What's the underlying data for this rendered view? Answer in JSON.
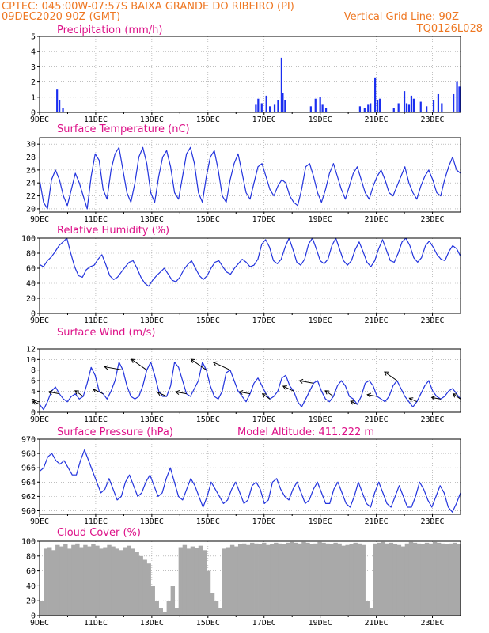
{
  "header": {
    "left_line1": "CPTEC:   045:00W-07:57S  BAIXA GRANDE DO RIBEIRO (PI)",
    "left_line2": "09DEC2020 90Z (GMT)",
    "right_line1": "Vertical Grid Line: 90Z",
    "right_line2": "TQ0126L028",
    "model_altitude": "Model Altitude: 411.222  m"
  },
  "colors": {
    "header": "#ee7722",
    "panel_title": "#dd1188",
    "line": "#2233dd",
    "bar": "#1a2ef0",
    "cloud": "#a9a9a9",
    "arrow": "#000000"
  },
  "x_axis": {
    "labels": [
      "9DEC",
      "11DEC",
      "13DEC",
      "15DEC",
      "17DEC",
      "19DEC",
      "21DEC",
      "23DEC"
    ],
    "start": "2020-12-09",
    "end": "2020-12-24",
    "vertical_grid_hour": "90Z"
  },
  "chart_data": [
    {
      "type": "bar",
      "title": "Precipitation (mm/h)",
      "ylim": [
        0,
        5
      ],
      "yticks": [
        0,
        1,
        2,
        3,
        4,
        5
      ],
      "series": [
        {
          "events": [
            {
              "x": "2020-12-09T15",
              "y": 1.5
            },
            {
              "x": "2020-12-09T17",
              "y": 0.8
            },
            {
              "x": "2020-12-09T20",
              "y": 0.3
            },
            {
              "x": "2020-12-16T17",
              "y": 0.5
            },
            {
              "x": "2020-12-16T19",
              "y": 0.9
            },
            {
              "x": "2020-12-16T22",
              "y": 0.6
            },
            {
              "x": "2020-12-17T02",
              "y": 1.1
            },
            {
              "x": "2020-12-17T05",
              "y": 0.4
            },
            {
              "x": "2020-12-17T09",
              "y": 0.5
            },
            {
              "x": "2020-12-17T12",
              "y": 0.8
            },
            {
              "x": "2020-12-17T15",
              "y": 3.6
            },
            {
              "x": "2020-12-17T16",
              "y": 1.3
            },
            {
              "x": "2020-12-17T18",
              "y": 0.8
            },
            {
              "x": "2020-12-18T16",
              "y": 0.4
            },
            {
              "x": "2020-12-18T20",
              "y": 0.9
            },
            {
              "x": "2020-12-19T00",
              "y": 1.0
            },
            {
              "x": "2020-12-19T02",
              "y": 0.5
            },
            {
              "x": "2020-12-19T05",
              "y": 0.3
            },
            {
              "x": "2020-12-20T10",
              "y": 0.4
            },
            {
              "x": "2020-12-20T14",
              "y": 0.3
            },
            {
              "x": "2020-12-20T17",
              "y": 0.5
            },
            {
              "x": "2020-12-20T19",
              "y": 0.6
            },
            {
              "x": "2020-12-20T23",
              "y": 2.3
            },
            {
              "x": "2020-12-21T01",
              "y": 0.8
            },
            {
              "x": "2020-12-21T03",
              "y": 0.9
            },
            {
              "x": "2020-12-21T15",
              "y": 0.3
            },
            {
              "x": "2020-12-21T19",
              "y": 0.6
            },
            {
              "x": "2020-12-22T00",
              "y": 1.4
            },
            {
              "x": "2020-12-22T02",
              "y": 0.6
            },
            {
              "x": "2020-12-22T04",
              "y": 0.5
            },
            {
              "x": "2020-12-22T06",
              "y": 1.1
            },
            {
              "x": "2020-12-22T08",
              "y": 0.9
            },
            {
              "x": "2020-12-22T14",
              "y": 0.7
            },
            {
              "x": "2020-12-22T19",
              "y": 0.4
            },
            {
              "x": "2020-12-23T01",
              "y": 0.8
            },
            {
              "x": "2020-12-23T05",
              "y": 1.2
            },
            {
              "x": "2020-12-23T08",
              "y": 0.6
            },
            {
              "x": "2020-12-23T18",
              "y": 1.2
            },
            {
              "x": "2020-12-23T21",
              "y": 2.0
            },
            {
              "x": "2020-12-23T23",
              "y": 1.7
            }
          ]
        }
      ]
    },
    {
      "type": "line",
      "title": "Surface Temperature (nC)",
      "ylim": [
        19.5,
        31
      ],
      "yticks": [
        20,
        22,
        24,
        26,
        28,
        30
      ],
      "series": [
        {
          "values": [
            24.5,
            21,
            20,
            24.5,
            26,
            24.5,
            22,
            20.5,
            23,
            25.5,
            24,
            22,
            20,
            25,
            28.5,
            27.5,
            23,
            21.5,
            26,
            28.5,
            29.5,
            26,
            22.5,
            21,
            24,
            28,
            29.5,
            27,
            22.5,
            21,
            25,
            28,
            29,
            26.5,
            22.5,
            21.5,
            25,
            28.5,
            29.5,
            27,
            22.5,
            21,
            25,
            28,
            29,
            26,
            22,
            21,
            24.5,
            27,
            28.5,
            25.5,
            22.5,
            21.5,
            24,
            26.5,
            27,
            25,
            23,
            22,
            23.5,
            24.5,
            24,
            22,
            21,
            20.5,
            23,
            26.5,
            27,
            25,
            22.5,
            21,
            23,
            25.5,
            27,
            25,
            23,
            21.5,
            23.5,
            25.5,
            26.5,
            24.5,
            22.5,
            21.5,
            23.5,
            25,
            26,
            24.5,
            22.5,
            22,
            23.5,
            25,
            26.5,
            24,
            22.5,
            21.5,
            23.5,
            25,
            26,
            24.5,
            22.5,
            22,
            24.5,
            26.5,
            28,
            26,
            25.5
          ]
        }
      ]
    },
    {
      "type": "line",
      "title": "Relative Humidity (%)",
      "ylim": [
        0,
        100
      ],
      "yticks": [
        0,
        20,
        40,
        60,
        80,
        100
      ],
      "series": [
        {
          "values": [
            65,
            62,
            70,
            75,
            82,
            90,
            95,
            100,
            80,
            62,
            50,
            48,
            58,
            62,
            64,
            72,
            78,
            65,
            50,
            45,
            48,
            55,
            62,
            68,
            70,
            60,
            48,
            40,
            36,
            44,
            50,
            55,
            60,
            52,
            44,
            42,
            48,
            58,
            65,
            70,
            60,
            50,
            45,
            50,
            60,
            68,
            70,
            62,
            55,
            52,
            60,
            66,
            72,
            68,
            62,
            64,
            72,
            92,
            98,
            88,
            70,
            66,
            72,
            88,
            100,
            85,
            68,
            64,
            72,
            92,
            100,
            86,
            70,
            66,
            72,
            90,
            100,
            85,
            70,
            64,
            70,
            85,
            95,
            82,
            68,
            62,
            70,
            86,
            98,
            84,
            70,
            68,
            80,
            95,
            100,
            90,
            74,
            68,
            74,
            90,
            96,
            88,
            78,
            72,
            70,
            82,
            90,
            86,
            76
          ]
        }
      ]
    },
    {
      "type": "line",
      "title": "Surface Wind (m/s)",
      "ylim": [
        0,
        12
      ],
      "yticks": [
        0,
        2,
        4,
        6,
        8,
        10,
        12
      ],
      "series": [
        {
          "values": [
            1.5,
            0.5,
            2,
            4,
            4.8,
            3.5,
            2.5,
            2,
            3,
            3.5,
            2.5,
            3,
            5.5,
            8.5,
            7,
            4,
            3.5,
            2.5,
            4,
            6,
            9.5,
            8,
            5,
            3,
            2.5,
            3,
            5,
            8,
            9.5,
            7,
            4,
            3,
            3,
            5,
            9.5,
            8.5,
            6,
            3.5,
            3,
            4.5,
            6,
            9.5,
            8,
            5,
            3,
            2.5,
            4,
            7.5,
            8,
            6,
            4,
            3,
            2,
            3.5,
            5.5,
            6.5,
            5,
            3.5,
            2.5,
            3,
            4,
            6.5,
            7,
            5,
            4,
            2,
            1,
            2.5,
            4,
            5.5,
            6,
            4,
            2.5,
            2,
            3,
            5,
            6,
            5,
            3,
            2.5,
            1.5,
            3,
            5.5,
            6,
            5,
            3,
            2.5,
            2,
            3,
            5,
            6,
            4.5,
            3,
            2,
            1,
            2,
            3.5,
            5,
            6,
            4,
            3,
            2.5,
            3,
            4,
            4.5,
            3.5,
            2.5
          ]
        }
      ],
      "arrows_count": 21
    },
    {
      "type": "line",
      "title": "Surface Pressure (hPa)",
      "ylim": [
        959.5,
        970
      ],
      "yticks": [
        960,
        962,
        964,
        966,
        968,
        970
      ],
      "series": [
        {
          "values": [
            965.5,
            966,
            967.5,
            968,
            967,
            966.5,
            967,
            966,
            965,
            965,
            967,
            968.5,
            967,
            965.5,
            964,
            962.5,
            963,
            964.5,
            963,
            961.5,
            962,
            964,
            965,
            963.5,
            962,
            962.5,
            964,
            965,
            963.5,
            962,
            962.5,
            964.5,
            966,
            964,
            962,
            961.5,
            963,
            964.5,
            963.5,
            962,
            960.5,
            962,
            964,
            963,
            962,
            961,
            961.5,
            963,
            964,
            962.5,
            961,
            961.5,
            963.5,
            964,
            963,
            961,
            961.5,
            964,
            964.5,
            963,
            962,
            961.5,
            963,
            964,
            962.5,
            961,
            961.5,
            963,
            964,
            962.5,
            961,
            961,
            963,
            964,
            962.5,
            961,
            960.5,
            962,
            964,
            962.5,
            961,
            960.5,
            962.5,
            964,
            962.5,
            961,
            960.5,
            962,
            963.5,
            962,
            960.5,
            960.5,
            962,
            964,
            963,
            961.5,
            960.5,
            962,
            963.5,
            962.5,
            960.5,
            959.8,
            961,
            962.5
          ]
        }
      ]
    },
    {
      "type": "area",
      "title": "Cloud Cover (%)",
      "ylim": [
        0,
        100
      ],
      "yticks": [
        0,
        20,
        40,
        60,
        80,
        100
      ],
      "series": [
        {
          "values": [
            20,
            90,
            92,
            88,
            95,
            93,
            96,
            90,
            95,
            97,
            92,
            95,
            93,
            96,
            94,
            90,
            92,
            95,
            93,
            90,
            88,
            92,
            94,
            90,
            86,
            80,
            75,
            70,
            40,
            20,
            10,
            5,
            20,
            40,
            10,
            92,
            95,
            90,
            93,
            91,
            94,
            88,
            60,
            30,
            20,
            10,
            90,
            92,
            95,
            93,
            96,
            97,
            95,
            98,
            97,
            96,
            98,
            95,
            96,
            98,
            97,
            96,
            98,
            99,
            98,
            97,
            99,
            98,
            96,
            97,
            99,
            98,
            97,
            96,
            98,
            97,
            94,
            95,
            96,
            98,
            97,
            95,
            20,
            10,
            97,
            98,
            99,
            97,
            98,
            96,
            95,
            93,
            97,
            99,
            98,
            97,
            96,
            98,
            97,
            99,
            98,
            97,
            96,
            97,
            98,
            96
          ]
        }
      ]
    }
  ]
}
